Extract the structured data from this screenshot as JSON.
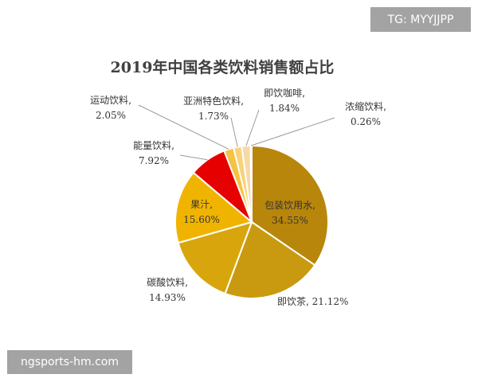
{
  "watermarks": {
    "top_right": "TG: MYYJJPP",
    "bottom_left": "ngsports-hm.com"
  },
  "chart_data": {
    "type": "pie",
    "title": "2019年中国各类饮料销售额占比",
    "slices": [
      {
        "name": "包装饮用水",
        "value": 34.55,
        "label": "包装饮用水,",
        "pct": "34.55%",
        "color": "#b8860b"
      },
      {
        "name": "即饮茶",
        "value": 21.12,
        "label": "即饮茶,",
        "pct": "21.12%",
        "color": "#c99a10"
      },
      {
        "name": "碳酸饮料",
        "value": 14.93,
        "label": "碳酸饮料,",
        "pct": "14.93%",
        "color": "#d9a50c"
      },
      {
        "name": "果汁",
        "value": 15.6,
        "label": "果汁,",
        "pct": "15.60%",
        "color": "#f0b400"
      },
      {
        "name": "能量饮料",
        "value": 7.92,
        "label": "能量饮料,",
        "pct": "7.92%",
        "color": "#e60000"
      },
      {
        "name": "运动饮料",
        "value": 2.05,
        "label": "运动饮料,",
        "pct": "2.05%",
        "color": "#f5c242"
      },
      {
        "name": "亚洲特色饮料",
        "value": 1.73,
        "label": "亚洲特色饮料,",
        "pct": "1.73%",
        "color": "#f7d27a"
      },
      {
        "name": "即饮咖啡",
        "value": 1.84,
        "label": "即饮咖啡,",
        "pct": "1.84%",
        "color": "#f5d9a8"
      },
      {
        "name": "浓缩饮料",
        "value": 0.26,
        "label": "浓缩饮料,",
        "pct": "0.26%",
        "color": "#f2e2c4"
      }
    ]
  }
}
